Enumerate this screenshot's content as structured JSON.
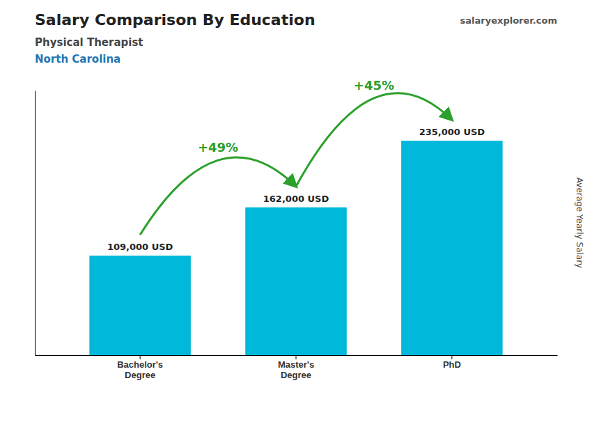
{
  "chart_data": {
    "type": "bar",
    "title": "Salary Comparison By Education",
    "subtitle": [
      "Physical Therapist",
      "North Carolina"
    ],
    "caption": "salaryexplorer.com",
    "ylabel": "Average Yearly Salary",
    "categories": [
      "Bachelor's\nDegree",
      "Master's\nDegree",
      "PhD"
    ],
    "values": [
      109000,
      162000,
      235000
    ],
    "value_labels": [
      "109,000 USD",
      "162,000 USD",
      "235,000 USD"
    ],
    "data_labels": true,
    "color": "#00b8d9",
    "ylim": [
      0,
      290000
    ],
    "tick_labels": "x",
    "annotations": [
      "+49%",
      "+45%"
    ]
  }
}
